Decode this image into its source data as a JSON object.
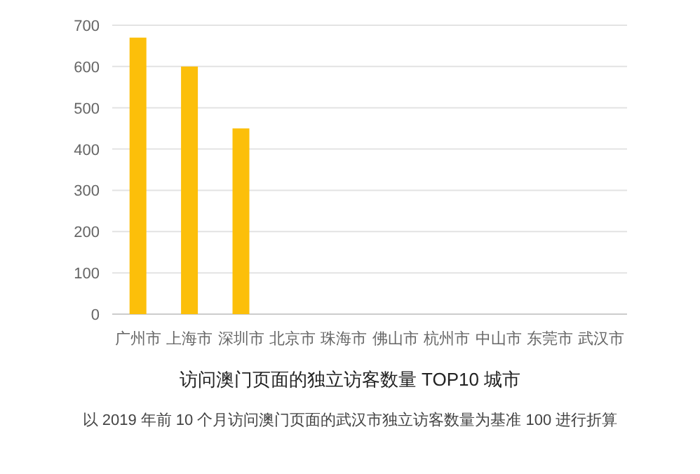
{
  "chart_data": {
    "type": "bar",
    "title": "访问澳门页面的独立访客数量 TOP10 城市",
    "categories": [
      "广州市",
      "上海市",
      "深圳市",
      "北京市",
      "珠海市",
      "佛山市",
      "杭州市",
      "中山市",
      "东莞市",
      "武汉市"
    ],
    "values": [
      670,
      600,
      450,
      null,
      null,
      null,
      null,
      null,
      null,
      null
    ],
    "color": "#fcbf0a",
    "ylim": [
      0,
      700
    ],
    "yticks": [
      0,
      100,
      200,
      300,
      400,
      500,
      600,
      700
    ],
    "grid": "y",
    "annotations": [
      "以 2019 年前 10 个月访问澳门页面的武汉市独立访客数量为基准 100 进行折算"
    ]
  }
}
